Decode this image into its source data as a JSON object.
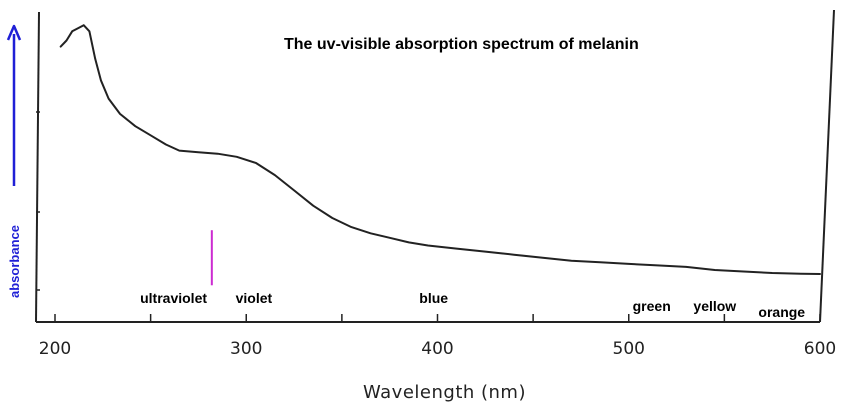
{
  "chart_data": {
    "type": "line",
    "title": "The uv-visible absorption spectrum of melanin",
    "xlabel": "Wavelength (nm)",
    "ylabel": "absorbance",
    "xlim": [
      195,
      600
    ],
    "ylim": [
      0,
      1
    ],
    "grid": false,
    "x_ticks": [
      200,
      300,
      400,
      500,
      600
    ],
    "x_tick_labels": [
      "200",
      "300",
      "400",
      "500",
      "600"
    ],
    "colors": {
      "curve": "#222222",
      "axes": "#222222",
      "yarrow": "#1f1fd6",
      "marker": "#cc2bd1"
    },
    "series": [
      {
        "values": [
          {
            "x": 203,
            "y": 0.9
          },
          {
            "x": 206,
            "y": 0.92
          },
          {
            "x": 209,
            "y": 0.95
          },
          {
            "x": 212,
            "y": 0.96
          },
          {
            "x": 215,
            "y": 0.97
          },
          {
            "x": 218,
            "y": 0.95
          },
          {
            "x": 221,
            "y": 0.86
          },
          {
            "x": 224,
            "y": 0.79
          },
          {
            "x": 228,
            "y": 0.73
          },
          {
            "x": 234,
            "y": 0.68
          },
          {
            "x": 242,
            "y": 0.64
          },
          {
            "x": 250,
            "y": 0.61
          },
          {
            "x": 258,
            "y": 0.58
          },
          {
            "x": 265,
            "y": 0.56
          },
          {
            "x": 275,
            "y": 0.555
          },
          {
            "x": 285,
            "y": 0.55
          },
          {
            "x": 295,
            "y": 0.54
          },
          {
            "x": 305,
            "y": 0.52
          },
          {
            "x": 315,
            "y": 0.48
          },
          {
            "x": 325,
            "y": 0.43
          },
          {
            "x": 335,
            "y": 0.38
          },
          {
            "x": 345,
            "y": 0.34
          },
          {
            "x": 355,
            "y": 0.31
          },
          {
            "x": 365,
            "y": 0.29
          },
          {
            "x": 375,
            "y": 0.275
          },
          {
            "x": 385,
            "y": 0.26
          },
          {
            "x": 395,
            "y": 0.25
          },
          {
            "x": 410,
            "y": 0.24
          },
          {
            "x": 425,
            "y": 0.23
          },
          {
            "x": 440,
            "y": 0.22
          },
          {
            "x": 455,
            "y": 0.21
          },
          {
            "x": 470,
            "y": 0.2
          },
          {
            "x": 485,
            "y": 0.195
          },
          {
            "x": 500,
            "y": 0.19
          },
          {
            "x": 515,
            "y": 0.185
          },
          {
            "x": 530,
            "y": 0.18
          },
          {
            "x": 545,
            "y": 0.17
          },
          {
            "x": 560,
            "y": 0.165
          },
          {
            "x": 575,
            "y": 0.16
          },
          {
            "x": 590,
            "y": 0.158
          },
          {
            "x": 600,
            "y": 0.157
          }
        ]
      }
    ],
    "annotations": [
      {
        "text": "ultraviolet",
        "x": 262
      },
      {
        "text": "violet",
        "x": 304
      },
      {
        "text": "blue",
        "x": 398
      },
      {
        "text": "green",
        "x": 512
      },
      {
        "text": "yellow",
        "x": 545
      },
      {
        "text": "orange",
        "x": 580
      }
    ],
    "marker_line": {
      "x": 282,
      "y_from": 0.12,
      "y_to": 0.3
    }
  }
}
